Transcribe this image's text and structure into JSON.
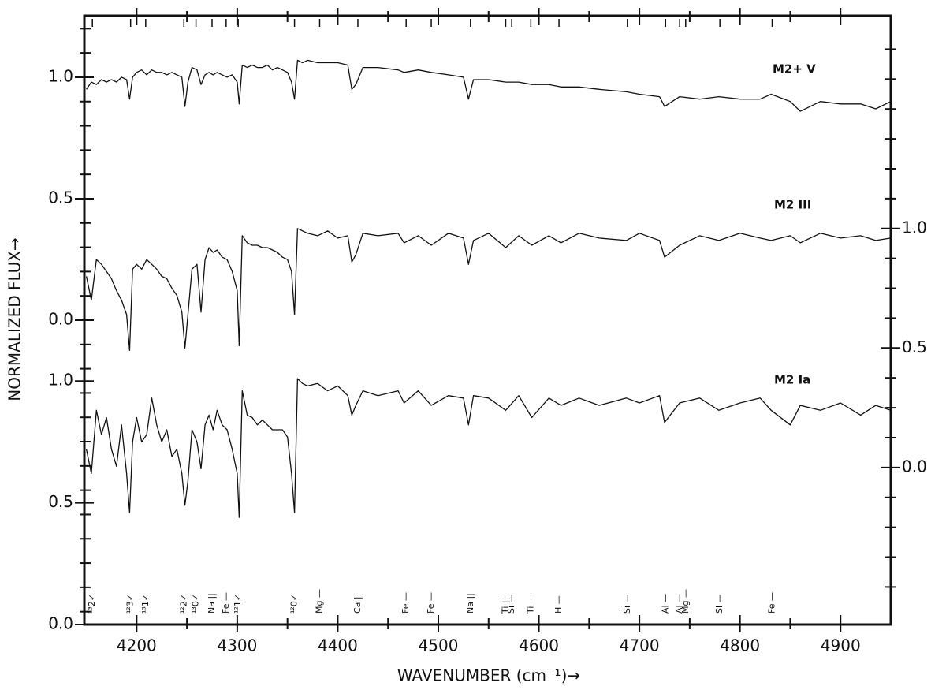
{
  "chart_data": {
    "type": "line",
    "xlabel": "WAVENUMBER (cm⁻¹)→",
    "ylabel": "NORMALIZED FLUX→",
    "xlim": [
      4148,
      4950
    ],
    "xticks": [
      4200,
      4300,
      4400,
      4500,
      4600,
      4700,
      4800,
      4900
    ],
    "xminorticks": [
      4250,
      4350,
      4450,
      4550,
      4650,
      4750,
      4850
    ],
    "ylim": [
      -1.253,
      1.253
    ],
    "yticks": [
      {
        "value": 0,
        "label": "0.0"
      },
      0.5,
      {
        "value": 1,
        "label": "1.0"
      }
    ],
    "yminorticks": [
      -1.2,
      -1.1,
      -1.0,
      -0.9,
      -0.8,
      -0.7,
      -0.6,
      -0.5,
      -0.4,
      -0.3,
      -0.2,
      -0.1,
      0.1,
      0.2,
      0.3,
      0.4,
      0.6,
      0.7,
      0.8,
      0.9,
      1.1,
      1.2
    ],
    "y3lim": [
      0,
      2.5
    ],
    "y3ticks": [
      {
        "value": 0,
        "label": "0.0"
      },
      0.5,
      {
        "value": 1,
        "label": "1.0"
      }
    ],
    "y2lim": [
      -0.657,
      1.89
    ],
    "y2ticks": [
      {
        "value": 0,
        "label": "0.0"
      },
      0.5,
      {
        "value": 1,
        "label": "1.0"
      }
    ],
    "y2minorticks": [
      -0.5,
      -0.375,
      -0.25,
      -0.125,
      0.125,
      0.25,
      0.375,
      0.625,
      0.75,
      0.875,
      1.125,
      1.25,
      1.375,
      1.5,
      1.625,
      1.75
    ],
    "x": [
      4150,
      4155,
      4160,
      4165,
      4170,
      4175,
      4180,
      4185,
      4190,
      4193,
      4196,
      4200,
      4205,
      4210,
      4215,
      4220,
      4225,
      4230,
      4235,
      4240,
      4245,
      4248,
      4251,
      4255,
      4260,
      4264,
      4268,
      4272,
      4276,
      4280,
      4285,
      4290,
      4295,
      4300,
      4302,
      4305,
      4310,
      4315,
      4320,
      4325,
      4330,
      4335,
      4340,
      4345,
      4350,
      4354,
      4357,
      4360,
      4365,
      4370,
      4380,
      4390,
      4400,
      4410,
      4414,
      4418,
      4425,
      4440,
      4460,
      4466,
      4480,
      4493,
      4510,
      4525,
      4530,
      4535,
      4550,
      4567,
      4580,
      4593,
      4610,
      4622,
      4640,
      4660,
      4687,
      4700,
      4720,
      4725,
      4740,
      4760,
      4779,
      4800,
      4820,
      4831,
      4850,
      4860,
      4880,
      4900,
      4920,
      4935,
      4950
    ],
    "series": [
      {
        "name": "M2+ V",
        "color": "#111111",
        "axis": "y",
        "values": [
          0.95,
          0.98,
          0.97,
          0.99,
          0.98,
          0.99,
          0.98,
          1.0,
          0.99,
          0.91,
          1.0,
          1.02,
          1.03,
          1.01,
          1.03,
          1.02,
          1.02,
          1.01,
          1.02,
          1.01,
          1.0,
          0.88,
          0.98,
          1.04,
          1.03,
          0.97,
          1.01,
          1.02,
          1.01,
          1.02,
          1.01,
          1.0,
          1.01,
          0.98,
          0.89,
          1.05,
          1.04,
          1.05,
          1.04,
          1.04,
          1.05,
          1.03,
          1.04,
          1.03,
          1.02,
          0.98,
          0.91,
          1.07,
          1.06,
          1.07,
          1.06,
          1.06,
          1.06,
          1.05,
          0.95,
          0.97,
          1.04,
          1.04,
          1.03,
          1.02,
          1.03,
          1.02,
          1.01,
          1.0,
          0.91,
          0.99,
          0.99,
          0.98,
          0.98,
          0.97,
          0.97,
          0.96,
          0.96,
          0.95,
          0.94,
          0.93,
          0.92,
          0.88,
          0.92,
          0.91,
          0.92,
          0.91,
          0.91,
          0.93,
          0.9,
          0.86,
          0.9,
          0.89,
          0.89,
          0.87,
          0.9
        ]
      },
      {
        "name": "M2 III",
        "color": "#111111",
        "axis": "y2",
        "values": [
          0.8,
          0.7,
          0.87,
          0.85,
          0.82,
          0.79,
          0.74,
          0.7,
          0.64,
          0.49,
          0.83,
          0.85,
          0.83,
          0.87,
          0.85,
          0.83,
          0.8,
          0.79,
          0.75,
          0.72,
          0.65,
          0.5,
          0.64,
          0.83,
          0.85,
          0.65,
          0.87,
          0.92,
          0.9,
          0.91,
          0.88,
          0.87,
          0.82,
          0.74,
          0.51,
          0.97,
          0.94,
          0.93,
          0.93,
          0.92,
          0.92,
          0.91,
          0.9,
          0.88,
          0.87,
          0.82,
          0.64,
          1.0,
          0.99,
          0.98,
          0.97,
          0.99,
          0.96,
          0.97,
          0.86,
          0.89,
          0.98,
          0.97,
          0.98,
          0.94,
          0.97,
          0.93,
          0.98,
          0.96,
          0.85,
          0.95,
          0.98,
          0.92,
          0.97,
          0.93,
          0.97,
          0.94,
          0.98,
          0.96,
          0.95,
          0.98,
          0.95,
          0.88,
          0.93,
          0.97,
          0.95,
          0.98,
          0.96,
          0.95,
          0.97,
          0.94,
          0.98,
          0.96,
          0.97,
          0.95,
          0.96
        ]
      },
      {
        "name": "M2 Ia",
        "color": "#111111",
        "axis": "y3",
        "values": [
          0.72,
          0.62,
          0.88,
          0.78,
          0.85,
          0.72,
          0.65,
          0.82,
          0.62,
          0.46,
          0.75,
          0.85,
          0.75,
          0.78,
          0.93,
          0.82,
          0.75,
          0.8,
          0.69,
          0.72,
          0.62,
          0.49,
          0.59,
          0.8,
          0.75,
          0.64,
          0.82,
          0.86,
          0.8,
          0.88,
          0.82,
          0.8,
          0.72,
          0.62,
          0.44,
          0.96,
          0.86,
          0.85,
          0.82,
          0.84,
          0.82,
          0.8,
          0.8,
          0.8,
          0.77,
          0.62,
          0.46,
          1.01,
          0.99,
          0.98,
          0.99,
          0.96,
          0.98,
          0.94,
          0.86,
          0.9,
          0.96,
          0.94,
          0.96,
          0.91,
          0.96,
          0.9,
          0.94,
          0.93,
          0.82,
          0.94,
          0.93,
          0.88,
          0.94,
          0.85,
          0.93,
          0.9,
          0.93,
          0.9,
          0.93,
          0.91,
          0.94,
          0.83,
          0.91,
          0.93,
          0.88,
          0.91,
          0.93,
          0.88,
          0.82,
          0.9,
          0.88,
          0.91,
          0.86,
          0.9,
          0.88
        ]
      }
    ],
    "line_ids": [
      {
        "label": "¹³2✓",
        "x": 4156
      },
      {
        "label": "¹²3✓",
        "x": 4194
      },
      {
        "label": "¹³1✓",
        "x": 4209
      },
      {
        "label": "¹²2✓",
        "x": 4247
      },
      {
        "label": "¹³0✓",
        "x": 4259
      },
      {
        "label": "Na ||",
        "x": 4275
      },
      {
        "label": "Fe —",
        "x": 4289
      },
      {
        "label": "¹²1✓",
        "x": 4301
      },
      {
        "label": "¹²0✓",
        "x": 4357
      },
      {
        "label": "Mg —",
        "x": 4382
      },
      {
        "label": "Ca ||",
        "x": 4420
      },
      {
        "label": "Fe —",
        "x": 4468
      },
      {
        "label": "Fe —",
        "x": 4493
      },
      {
        "label": "Na ||",
        "x": 4532
      },
      {
        "label": "Ti ||",
        "x": 4567
      },
      {
        "label": "Si —",
        "x": 4573
      },
      {
        "label": "Ti —",
        "x": 4592
      },
      {
        "label": "H —",
        "x": 4620
      },
      {
        "label": "Si —",
        "x": 4688
      },
      {
        "label": "Al —",
        "x": 4726
      },
      {
        "label": "Al —",
        "x": 4740
      },
      {
        "label": "Mg —",
        "x": 4746
      },
      {
        "label": "Si —",
        "x": 4780
      },
      {
        "label": "Fe —",
        "x": 4832
      }
    ]
  }
}
